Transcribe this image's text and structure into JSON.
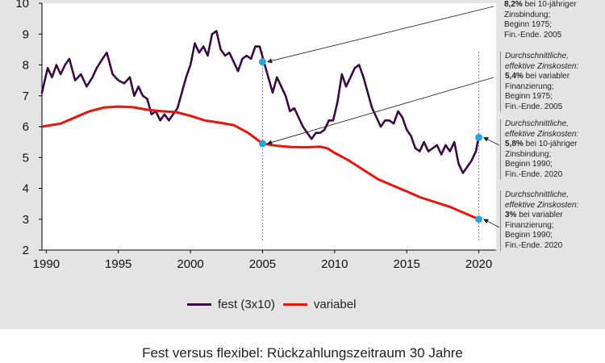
{
  "caption": "Fest versus flexibel: Rückzahlungszeitraum 30 Jahre",
  "colors": {
    "panel": "#e4e4e4",
    "plot_bg": "#ffffff",
    "fest": "#3b0a45",
    "variabel": "#e8140e",
    "marker": "#29a3dc",
    "guide": "#29a3dc"
  },
  "chart_data": {
    "type": "line",
    "x_ticks": [
      "1990",
      "1995",
      "2000",
      "2005",
      "2010",
      "2015",
      "2020"
    ],
    "y_ticks": [
      "2",
      "3",
      "4",
      "5",
      "6",
      "7",
      "8",
      "9",
      "10"
    ],
    "xlim": [
      1989.7,
      2021.2
    ],
    "ylim": [
      2,
      10
    ],
    "grid": false,
    "legend_position": "bottom-center",
    "series": [
      {
        "name": "fest (3x10)",
        "key": "fest",
        "points": [
          [
            1989.7,
            7.1
          ],
          [
            1990.1,
            7.9
          ],
          [
            1990.4,
            7.6
          ],
          [
            1990.7,
            8.0
          ],
          [
            1991.0,
            7.7
          ],
          [
            1991.3,
            8.0
          ],
          [
            1991.6,
            8.2
          ],
          [
            1992.0,
            7.5
          ],
          [
            1992.4,
            7.7
          ],
          [
            1992.8,
            7.3
          ],
          [
            1993.2,
            7.6
          ],
          [
            1993.5,
            7.9
          ],
          [
            1993.9,
            8.2
          ],
          [
            1994.2,
            8.4
          ],
          [
            1994.6,
            7.7
          ],
          [
            1995.0,
            7.5
          ],
          [
            1995.4,
            7.4
          ],
          [
            1995.8,
            7.6
          ],
          [
            1996.1,
            7.0
          ],
          [
            1996.4,
            7.3
          ],
          [
            1996.7,
            7.0
          ],
          [
            1997.0,
            6.9
          ],
          [
            1997.3,
            6.4
          ],
          [
            1997.6,
            6.5
          ],
          [
            1997.9,
            6.2
          ],
          [
            1998.2,
            6.4
          ],
          [
            1998.5,
            6.2
          ],
          [
            1998.8,
            6.4
          ],
          [
            1999.1,
            6.6
          ],
          [
            1999.4,
            7.1
          ],
          [
            1999.7,
            7.6
          ],
          [
            2000.0,
            8.0
          ],
          [
            2000.3,
            8.7
          ],
          [
            2000.6,
            8.4
          ],
          [
            2000.9,
            8.6
          ],
          [
            2001.2,
            8.3
          ],
          [
            2001.5,
            9.0
          ],
          [
            2001.8,
            9.1
          ],
          [
            2002.1,
            8.5
          ],
          [
            2002.4,
            8.3
          ],
          [
            2002.7,
            8.4
          ],
          [
            2003.0,
            8.1
          ],
          [
            2003.3,
            7.8
          ],
          [
            2003.6,
            8.2
          ],
          [
            2003.9,
            8.3
          ],
          [
            2004.2,
            8.2
          ],
          [
            2004.5,
            8.6
          ],
          [
            2004.8,
            8.6
          ],
          [
            2005.1,
            8.1
          ],
          [
            2005.4,
            7.6
          ],
          [
            2005.7,
            7.1
          ],
          [
            2006.0,
            7.6
          ],
          [
            2006.3,
            7.3
          ],
          [
            2006.6,
            7.0
          ],
          [
            2006.9,
            6.5
          ],
          [
            2007.2,
            6.6
          ],
          [
            2007.5,
            6.3
          ],
          [
            2007.8,
            6.0
          ],
          [
            2008.1,
            5.8
          ],
          [
            2008.4,
            5.6
          ],
          [
            2008.7,
            5.8
          ],
          [
            2009.0,
            5.8
          ],
          [
            2009.3,
            5.9
          ],
          [
            2009.6,
            6.2
          ],
          [
            2009.9,
            6.2
          ],
          [
            2010.2,
            6.8
          ],
          [
            2010.5,
            7.7
          ],
          [
            2010.8,
            7.3
          ],
          [
            2011.1,
            7.6
          ],
          [
            2011.4,
            7.9
          ],
          [
            2011.7,
            8.0
          ],
          [
            2012.0,
            7.6
          ],
          [
            2012.3,
            7.1
          ],
          [
            2012.6,
            6.6
          ],
          [
            2012.9,
            6.3
          ],
          [
            2013.2,
            6.0
          ],
          [
            2013.5,
            6.2
          ],
          [
            2013.8,
            6.2
          ],
          [
            2014.1,
            6.1
          ],
          [
            2014.4,
            6.5
          ],
          [
            2014.7,
            6.3
          ],
          [
            2015.0,
            5.9
          ],
          [
            2015.3,
            5.7
          ],
          [
            2015.6,
            5.3
          ],
          [
            2015.9,
            5.2
          ],
          [
            2016.2,
            5.5
          ],
          [
            2016.5,
            5.2
          ],
          [
            2016.8,
            5.3
          ],
          [
            2017.1,
            5.4
          ],
          [
            2017.4,
            5.1
          ],
          [
            2017.7,
            5.4
          ],
          [
            2018.0,
            5.2
          ],
          [
            2018.3,
            5.5
          ],
          [
            2018.6,
            4.8
          ],
          [
            2018.9,
            4.5
          ],
          [
            2019.2,
            4.7
          ],
          [
            2019.5,
            4.9
          ],
          [
            2019.8,
            5.2
          ],
          [
            2020.0,
            5.7
          ]
        ]
      },
      {
        "name": "variabel",
        "key": "variabel",
        "points": [
          [
            1989.7,
            6.0
          ],
          [
            1991.0,
            6.1
          ],
          [
            1992.0,
            6.3
          ],
          [
            1993.0,
            6.5
          ],
          [
            1994.0,
            6.62
          ],
          [
            1995.0,
            6.65
          ],
          [
            1996.0,
            6.63
          ],
          [
            1997.0,
            6.55
          ],
          [
            1998.0,
            6.5
          ],
          [
            1999.0,
            6.47
          ],
          [
            2000.0,
            6.35
          ],
          [
            2001.0,
            6.2
          ],
          [
            2002.0,
            6.13
          ],
          [
            2003.0,
            6.05
          ],
          [
            2004.0,
            5.8
          ],
          [
            2005.0,
            5.45
          ],
          [
            2006.0,
            5.38
          ],
          [
            2007.0,
            5.34
          ],
          [
            2008.0,
            5.33
          ],
          [
            2009.0,
            5.35
          ],
          [
            2009.5,
            5.3
          ],
          [
            2010.0,
            5.15
          ],
          [
            2011.0,
            4.9
          ],
          [
            2012.0,
            4.6
          ],
          [
            2013.0,
            4.3
          ],
          [
            2014.0,
            4.1
          ],
          [
            2015.0,
            3.9
          ],
          [
            2016.0,
            3.7
          ],
          [
            2017.0,
            3.55
          ],
          [
            2018.0,
            3.4
          ],
          [
            2019.0,
            3.2
          ],
          [
            2020.0,
            3.0
          ]
        ]
      }
    ],
    "markers": [
      {
        "x": 2005.0,
        "y": 8.1
      },
      {
        "x": 2005.0,
        "y": 5.45
      },
      {
        "x": 2020.0,
        "y": 5.65
      },
      {
        "x": 2020.0,
        "y": 3.0
      }
    ],
    "guides_x": [
      2005.0,
      2020.0
    ]
  },
  "annotations": [
    {
      "lead": "",
      "value": "8,2%",
      "rest_lines": [
        "bei 10-jähriger",
        "Zinsbindung;",
        "Beginn 1975;",
        "Fin.-Ende. 2005"
      ]
    },
    {
      "lead": "Durchschnittliche, effektive Zinskosten:",
      "value": "5,4%",
      "rest_lines": [
        "bei variabler",
        "Finanzierung;",
        "Beginn 1975;",
        "Fin.-Ende. 2005"
      ]
    },
    {
      "lead": "Durchschnittliche, effektive Zinskosten:",
      "value": "5,8%",
      "rest_lines": [
        "bei 10-jähriger",
        "Zinsbindung;",
        "Beginn 1990;",
        "Fin.-Ende. 2020"
      ]
    },
    {
      "lead": "Durchschnittliche, effektive Zinskosten:",
      "value": "3%",
      "rest_lines": [
        "bei variabler",
        "Finanzierung;",
        "Beginn 1990;",
        "Fin.-Ende. 2020"
      ]
    }
  ],
  "legend": [
    {
      "label": "fest (3x10)",
      "key": "fest"
    },
    {
      "label": "variabel",
      "key": "variabel"
    }
  ]
}
